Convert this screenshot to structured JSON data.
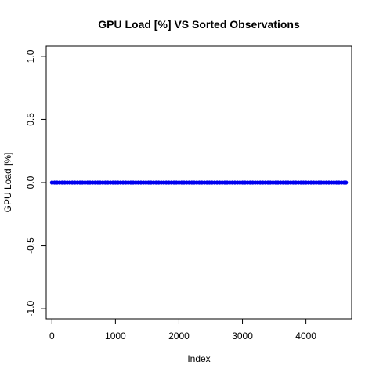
{
  "chart_data": {
    "type": "scatter",
    "title": "GPU Load [%]  VS  Sorted Observations",
    "xlabel": "Index",
    "ylabel": "GPU Load [%]",
    "xlim": [
      -90,
      4720
    ],
    "ylim": [
      -1.08,
      1.08
    ],
    "x_ticks": [
      0,
      1000,
      2000,
      3000,
      4000
    ],
    "y_ticks": [
      -1.0,
      -0.5,
      0.0,
      0.5,
      1.0
    ],
    "x_tick_labels": [
      "0",
      "1000",
      "2000",
      "3000",
      "4000"
    ],
    "y_tick_labels": [
      "-1.0",
      "-0.5",
      "0.0",
      "0.5",
      "1.0"
    ],
    "grid": false,
    "series": [
      {
        "color": "#0000ee",
        "x_start": 1,
        "x_end": 4630,
        "y_value": 0
      }
    ]
  }
}
